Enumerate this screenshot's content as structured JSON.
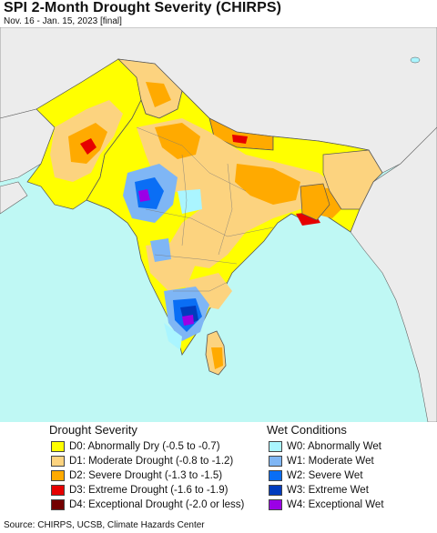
{
  "header": {
    "title": "SPI 2-Month Drought Severity (CHIRPS)",
    "subtitle": "Nov. 16 - Jan. 15, 2023 [final]"
  },
  "legend": {
    "drought": {
      "heading": "Drought Severity",
      "items": [
        {
          "label": "D0: Abnormally Dry (-0.5 to -0.7)",
          "color": "#ffff00"
        },
        {
          "label": "D1: Moderate Drought (-0.8 to -1.2)",
          "color": "#fcd37f"
        },
        {
          "label": "D2: Severe Drought (-1.3 to -1.5)",
          "color": "#ffaa00"
        },
        {
          "label": "D3: Extreme Drought (-1.6 to -1.9)",
          "color": "#e60000"
        },
        {
          "label": "D4: Exceptional Drought (-2.0 or less)",
          "color": "#730000"
        }
      ]
    },
    "wet": {
      "heading": "Wet Conditions",
      "items": [
        {
          "label": "W0: Abnormally Wet",
          "color": "#aaf5ff"
        },
        {
          "label": "W1: Moderate Wet",
          "color": "#7fb6f5"
        },
        {
          "label": "W2: Severe Wet",
          "color": "#0a6ef5"
        },
        {
          "label": "W3: Extreme Wet",
          "color": "#003cbe"
        },
        {
          "label": "W4: Exceptional Wet",
          "color": "#9b00e6"
        }
      ]
    }
  },
  "source": "Source: CHIRPS, UCSB, Climate Hazards Center",
  "map": {
    "colors": {
      "sea": "#bff8f4",
      "land_outside": "#ececec",
      "normal": "#ffffff",
      "border": "#555555"
    }
  }
}
